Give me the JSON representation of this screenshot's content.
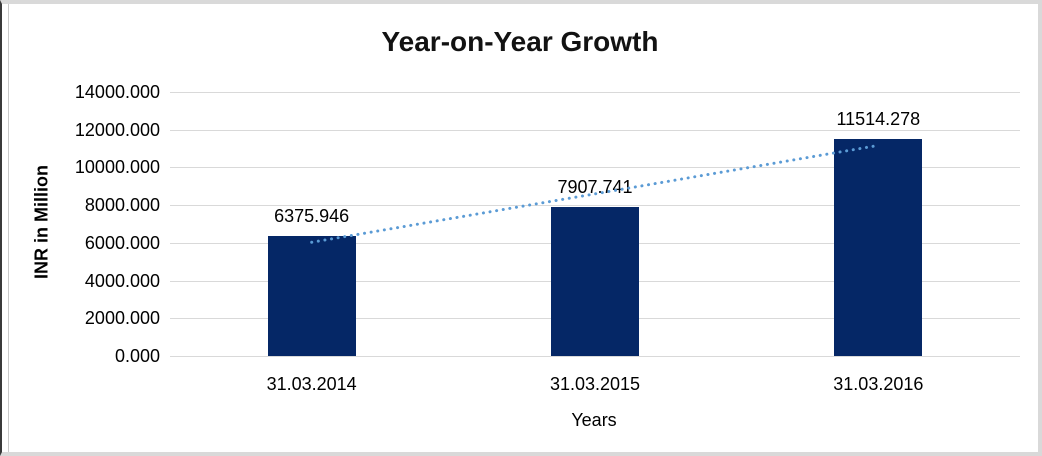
{
  "chart_data": {
    "type": "bar",
    "title": "Year-on-Year Growth",
    "xlabel": "Years",
    "ylabel": "INR in Million",
    "categories": [
      "31.03.2014",
      "31.03.2015",
      "31.03.2016"
    ],
    "values": [
      6375.946,
      7907.741,
      11514.278
    ],
    "value_labels": [
      "6375.946",
      "7907.741",
      "11514.278"
    ],
    "ylim": [
      0,
      14000
    ],
    "ytick_step": 2000,
    "yticks": [
      "14000.000",
      "12000.000",
      "10000.000",
      "8000.000",
      "6000.000",
      "4000.000",
      "2000.000",
      "0.000"
    ],
    "grid": true,
    "legend": "none",
    "trendline": {
      "type": "linear",
      "style": "dotted"
    },
    "colors": {
      "bar": "#052766",
      "trendline": "#5b9bd5",
      "gridline": "#d9d9d9",
      "text": "#000000",
      "title": "#121212",
      "frame_border": "#d9d9d9",
      "background": "#ffffff"
    }
  }
}
